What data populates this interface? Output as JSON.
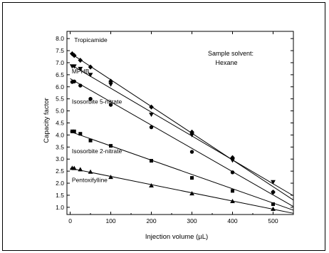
{
  "chart_data": {
    "type": "scatter",
    "xlabel": "Injection volume (µL)",
    "ylabel": "Capacity factor",
    "xlim": [
      -8,
      550
    ],
    "ylim": [
      0.7,
      8.3
    ],
    "x_ticks": [
      0,
      100,
      200,
      300,
      400,
      500
    ],
    "y_ticks": [
      1.0,
      1.5,
      2.0,
      2.5,
      3.0,
      3.5,
      4.0,
      4.5,
      5.0,
      5.5,
      6.0,
      6.5,
      7.0,
      7.5,
      8.0
    ],
    "y_tick_labels": [
      "1.0",
      "1.5",
      "2.0",
      "2.5",
      "3.0",
      "3.5",
      "4.0",
      "4.5",
      "5.0",
      "5.5",
      "6.0",
      "6.5",
      "7.0",
      "7.5",
      "8.0"
    ],
    "grid": false,
    "annotation": [
      "Sample solvent:",
      "Hexane"
    ],
    "series": [
      {
        "name": "Tropicamide",
        "marker": "diamond",
        "x": [
          5,
          10,
          25,
          50,
          100,
          200,
          300,
          400,
          500
        ],
        "y": [
          7.37,
          7.3,
          7.1,
          6.82,
          6.23,
          5.16,
          4.12,
          3.06,
          1.63
        ],
        "fit": [
          [
            0,
            7.4
          ],
          [
            550,
            1.3
          ]
        ]
      },
      {
        "name": "MPHB",
        "marker": "triangle-down",
        "x": [
          5,
          10,
          25,
          50,
          100,
          200,
          300,
          400,
          500
        ],
        "y": [
          6.85,
          6.85,
          6.75,
          6.5,
          6.1,
          4.85,
          4.0,
          2.95,
          2.05
        ],
        "fit": [
          [
            0,
            6.93
          ],
          [
            550,
            1.48
          ]
        ]
      },
      {
        "name": "Isosorbite 5-nitrate",
        "marker": "circle",
        "x": [
          5,
          10,
          25,
          50,
          100,
          200,
          300,
          400,
          500
        ],
        "y": [
          6.2,
          6.22,
          6.05,
          5.5,
          5.25,
          4.32,
          3.3,
          2.45,
          1.63
        ],
        "fit": [
          [
            0,
            6.34
          ],
          [
            550,
            1.03
          ]
        ]
      },
      {
        "name": "Isosorbite 2-nitrate",
        "marker": "square",
        "x": [
          5,
          10,
          25,
          50,
          100,
          200,
          300,
          400,
          500
        ],
        "y": [
          4.15,
          4.15,
          4.05,
          3.77,
          3.55,
          2.93,
          2.22,
          1.68,
          1.13
        ],
        "fit": [
          [
            0,
            4.14
          ],
          [
            550,
            0.88
          ]
        ]
      },
      {
        "name": "Pentoxifylline",
        "marker": "triangle-up",
        "x": [
          5,
          10,
          25,
          50,
          100,
          200,
          300,
          400,
          500
        ],
        "y": [
          2.63,
          2.62,
          2.57,
          2.47,
          2.25,
          1.9,
          1.57,
          1.25,
          0.93
        ],
        "fit": [
          [
            0,
            2.62
          ],
          [
            550,
            0.75
          ]
        ]
      }
    ],
    "series_label_positions": [
      {
        "x": 10,
        "y": 7.85
      },
      {
        "x": 4,
        "y": 6.55
      },
      {
        "x": 4,
        "y": 5.3
      },
      {
        "x": 4,
        "y": 3.25
      },
      {
        "x": 4,
        "y": 2.05
      }
    ]
  }
}
